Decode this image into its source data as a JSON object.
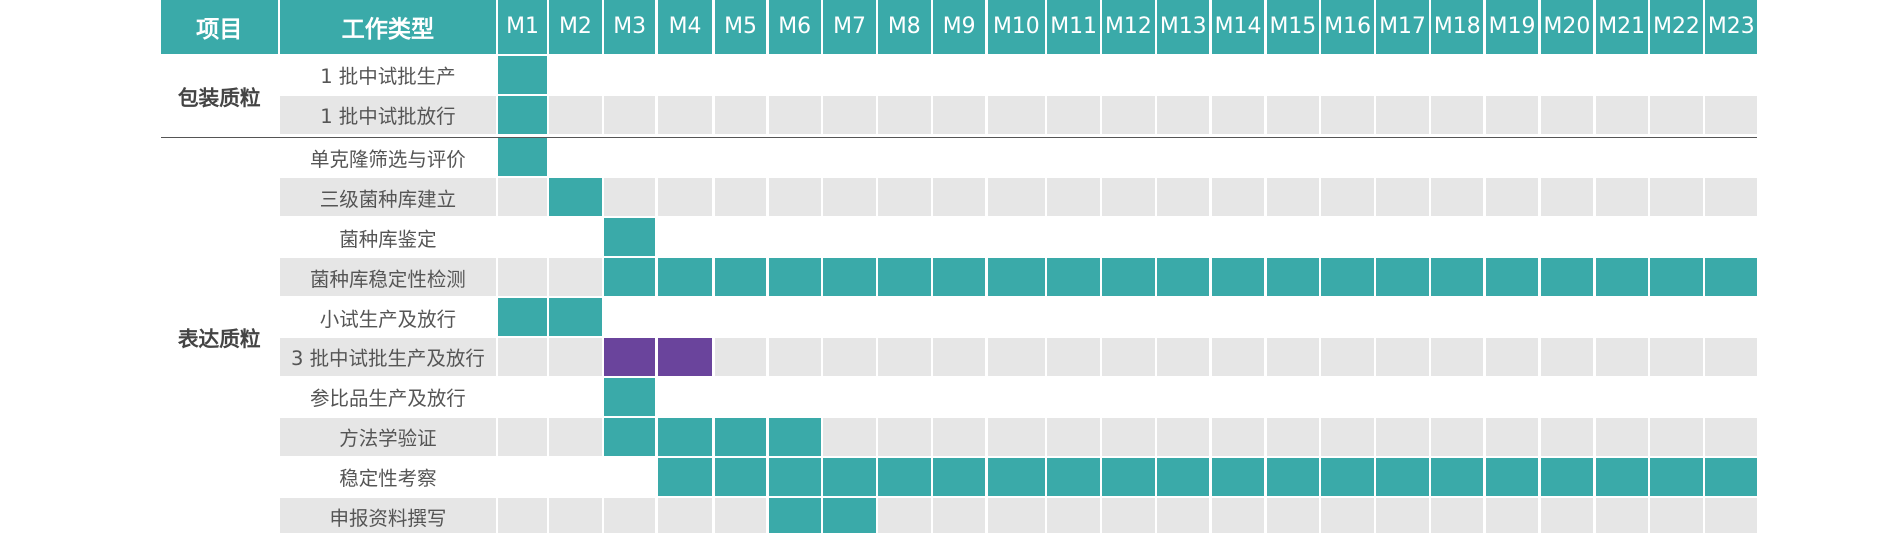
{
  "header": {
    "project": "项目",
    "work_type": "工作类型",
    "months": [
      "M1",
      "M2",
      "M3",
      "M4",
      "M5",
      "M6",
      "M7",
      "M8",
      "M9",
      "M10",
      "M11",
      "M12",
      "M13",
      "M14",
      "M15",
      "M16",
      "M17",
      "M18",
      "M19",
      "M20",
      "M21",
      "M22",
      "M23"
    ]
  },
  "groups": [
    {
      "name": "包装质粒",
      "tasks": [
        {
          "name": "1 批中试批生产",
          "start": 1,
          "end": 1,
          "color": "#3aaaa9"
        },
        {
          "name": "1 批中试批放行",
          "start": 1,
          "end": 1,
          "color": "#3aaaa9"
        }
      ]
    },
    {
      "name": "表达质粒",
      "tasks": [
        {
          "name": "单克隆筛选与评价",
          "start": 1,
          "end": 1,
          "color": "#3aaaa9"
        },
        {
          "name": "三级菌种库建立",
          "start": 2,
          "end": 2,
          "color": "#3aaaa9"
        },
        {
          "name": "菌种库鉴定",
          "start": 3,
          "end": 3,
          "color": "#3aaaa9"
        },
        {
          "name": "菌种库稳定性检测",
          "start": 3,
          "end": 23,
          "color": "#3aaaa9"
        },
        {
          "name": "小试生产及放行",
          "start": 1,
          "end": 2,
          "color": "#3aaaa9"
        },
        {
          "name": "3 批中试批生产及放行",
          "start": 3,
          "end": 4,
          "color": "#6a449c"
        },
        {
          "name": "参比品生产及放行",
          "start": 3,
          "end": 3,
          "color": "#3aaaa9"
        },
        {
          "name": "方法学验证",
          "start": 3,
          "end": 6,
          "color": "#3aaaa9"
        },
        {
          "name": "稳定性考察",
          "start": 4,
          "end": 23,
          "color": "#3aaaa9"
        },
        {
          "name": "申报资料撰写",
          "start": 6,
          "end": 7,
          "color": "#3aaaa9"
        }
      ]
    }
  ]
}
